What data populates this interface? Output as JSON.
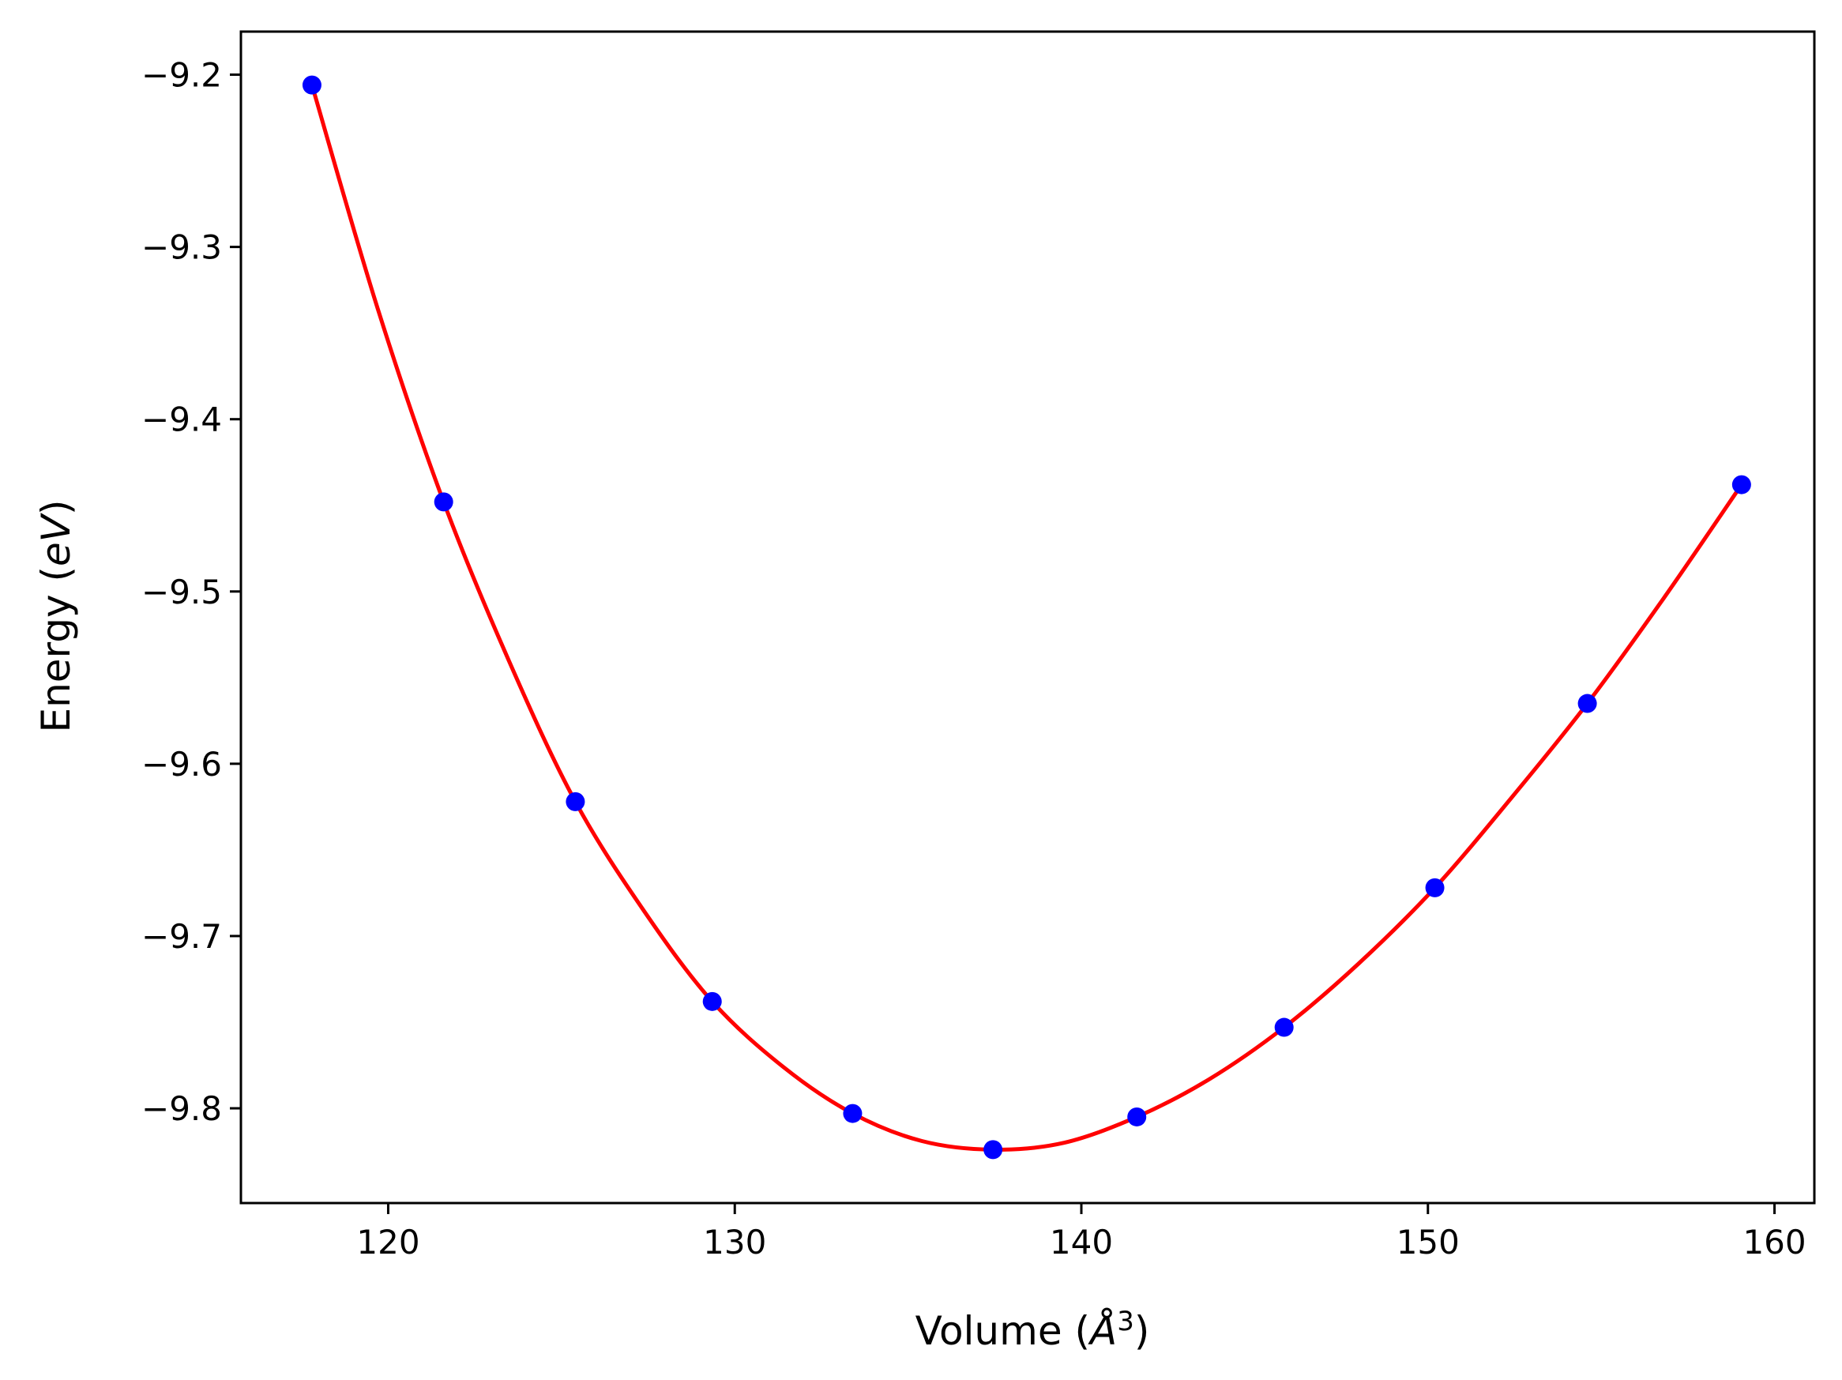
{
  "chart_data": {
    "type": "line",
    "xlabel": {
      "pre": "Volume (",
      "sym": "Å",
      "sup": "3",
      "post": ")"
    },
    "ylabel": {
      "pre": "Energy (",
      "ital": "eV",
      "post": ")"
    },
    "xlim": [
      115.75,
      161.15
    ],
    "ylim": [
      -9.855,
      -9.175
    ],
    "xticks": [
      120,
      130,
      140,
      150,
      160
    ],
    "xtick_labels": [
      "120",
      "130",
      "140",
      "150",
      "160"
    ],
    "yticks": [
      -9.2,
      -9.3,
      -9.4,
      -9.5,
      -9.6,
      -9.7,
      -9.8
    ],
    "ytick_labels": [
      "−9.2",
      "−9.3",
      "−9.4",
      "−9.5",
      "−9.6",
      "−9.7",
      "−9.8"
    ],
    "grid": false,
    "series": [
      {
        "kind": "scatter",
        "color": "#0000ff",
        "x": [
          117.8,
          121.6,
          125.4,
          129.35,
          133.4,
          137.45,
          141.6,
          145.85,
          150.2,
          154.6,
          159.05
        ],
        "y": [
          -9.206,
          -9.448,
          -9.622,
          -9.738,
          -9.803,
          -9.824,
          -9.805,
          -9.753,
          -9.672,
          -9.565,
          -9.438
        ]
      },
      {
        "kind": "line",
        "color": "#ff0000",
        "x": [
          117.8,
          119.7,
          121.6,
          123.5,
          125.4,
          127.4,
          129.35,
          131.4,
          133.4,
          135.4,
          137.45,
          139.5,
          141.6,
          143.7,
          145.85,
          148.0,
          150.2,
          152.4,
          154.6,
          156.8,
          159.05
        ],
        "y": [
          -9.206,
          -9.336,
          -9.448,
          -9.541,
          -9.622,
          -9.686,
          -9.738,
          -9.776,
          -9.803,
          -9.819,
          -9.824,
          -9.82,
          -9.805,
          -9.783,
          -9.753,
          -9.716,
          -9.672,
          -9.62,
          -9.565,
          -9.504,
          -9.438
        ]
      }
    ]
  }
}
